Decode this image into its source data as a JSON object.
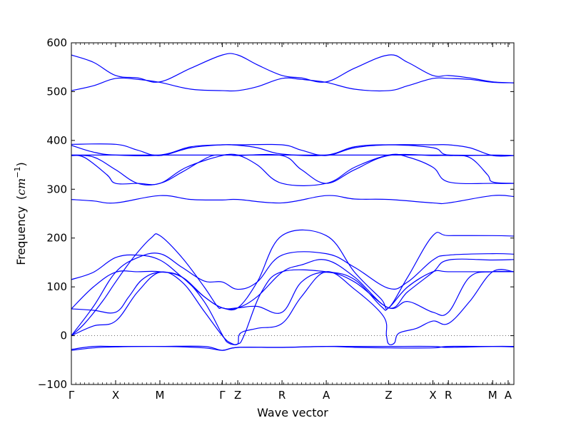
{
  "chart_data": {
    "type": "line",
    "xlabel": "Wave vector",
    "ylabel": "Frequency",
    "ylabel_unit_base": "cm",
    "ylabel_unit_exp": "−1",
    "ylim": [
      -100,
      600
    ],
    "yticks": [
      "600",
      "500",
      "400",
      "300",
      "200",
      "100",
      "0",
      "−100"
    ],
    "ytick_values": [
      600,
      500,
      400,
      300,
      200,
      100,
      0,
      -100
    ],
    "xlim": [
      0,
      10.0
    ],
    "q_points": [
      {
        "label": "Γ",
        "x": 0.0
      },
      {
        "label": "X",
        "x": 1.0
      },
      {
        "label": "M",
        "x": 2.0
      },
      {
        "label": "Γ",
        "x": 3.41
      },
      {
        "label": "Z",
        "x": 3.76
      },
      {
        "label": "R",
        "x": 4.76
      },
      {
        "label": "A",
        "x": 5.76
      },
      {
        "label": "Z",
        "x": 7.17
      },
      {
        "label": "X",
        "x": 8.17
      },
      {
        "label": "R",
        "x": 8.52
      },
      {
        "label": "M",
        "x": 9.52
      },
      {
        "label": "A",
        "x": 9.87
      }
    ],
    "zero_line": 0,
    "line_color": "#0000ff",
    "series": [
      {
        "values": [
          [
            0,
            575
          ],
          [
            0.5,
            560
          ],
          [
            1,
            533
          ],
          [
            1.5,
            528
          ],
          [
            2,
            520
          ],
          [
            2.7,
            548
          ],
          [
            3.41,
            575
          ],
          [
            3.76,
            575
          ],
          [
            4.2,
            555
          ],
          [
            4.76,
            533
          ],
          [
            5.2,
            528
          ],
          [
            5.76,
            520
          ],
          [
            6.4,
            548
          ],
          [
            7.17,
            575
          ],
          [
            7.6,
            560
          ],
          [
            8.17,
            533
          ],
          [
            8.52,
            533
          ],
          [
            9.0,
            528
          ],
          [
            9.52,
            520
          ],
          [
            10,
            518
          ]
        ]
      },
      {
        "values": [
          [
            0,
            502
          ],
          [
            0.5,
            512
          ],
          [
            1,
            527
          ],
          [
            1.5,
            525
          ],
          [
            2,
            519
          ],
          [
            2.7,
            505
          ],
          [
            3.41,
            502
          ],
          [
            3.76,
            502
          ],
          [
            4.2,
            510
          ],
          [
            4.76,
            527
          ],
          [
            5.2,
            525
          ],
          [
            5.76,
            519
          ],
          [
            6.4,
            505
          ],
          [
            7.17,
            502
          ],
          [
            7.6,
            512
          ],
          [
            8.17,
            527
          ],
          [
            8.52,
            527
          ],
          [
            9.0,
            525
          ],
          [
            9.52,
            519
          ],
          [
            10,
            518
          ]
        ]
      },
      {
        "values": [
          [
            0,
            392
          ],
          [
            1,
            392
          ],
          [
            1.5,
            380
          ],
          [
            2,
            369
          ],
          [
            2.7,
            385
          ],
          [
            3.41,
            391
          ],
          [
            3.76,
            391
          ],
          [
            4.76,
            391
          ],
          [
            5.2,
            380
          ],
          [
            5.76,
            369
          ],
          [
            6.4,
            385
          ],
          [
            7.17,
            391
          ],
          [
            8.17,
            391
          ],
          [
            8.52,
            391
          ],
          [
            9.0,
            385
          ],
          [
            9.52,
            369
          ],
          [
            10,
            369
          ]
        ]
      },
      {
        "values": [
          [
            0,
            390
          ],
          [
            0.5,
            376
          ],
          [
            1,
            370
          ],
          [
            2,
            370
          ],
          [
            2.7,
            387
          ],
          [
            3.41,
            391
          ],
          [
            3.76,
            390
          ],
          [
            4.2,
            385
          ],
          [
            4.76,
            372
          ],
          [
            5.76,
            370
          ],
          [
            6.4,
            387
          ],
          [
            7.17,
            391
          ],
          [
            8.17,
            385
          ],
          [
            8.52,
            370
          ],
          [
            9.52,
            370
          ],
          [
            10,
            369
          ]
        ]
      },
      {
        "values": [
          [
            0,
            370
          ],
          [
            0.5,
            366
          ],
          [
            1,
            340
          ],
          [
            1.5,
            312
          ],
          [
            2,
            312
          ],
          [
            2.5,
            335
          ],
          [
            3.1,
            366
          ],
          [
            3.41,
            370
          ],
          [
            3.76,
            370
          ],
          [
            4.2,
            350
          ],
          [
            4.76,
            312
          ],
          [
            5.76,
            312
          ],
          [
            6.4,
            345
          ],
          [
            7.17,
            370
          ],
          [
            7.6,
            366
          ],
          [
            8.17,
            345
          ],
          [
            8.52,
            315
          ],
          [
            9.52,
            312
          ],
          [
            10,
            312
          ]
        ]
      },
      {
        "values": [
          [
            0,
            369
          ],
          [
            0.3,
            365
          ],
          [
            0.8,
            330
          ],
          [
            1,
            312
          ],
          [
            1.5,
            312
          ],
          [
            2,
            312
          ],
          [
            2.6,
            345
          ],
          [
            3.41,
            369
          ],
          [
            3.76,
            369
          ],
          [
            4.76,
            369
          ],
          [
            5.2,
            340
          ],
          [
            5.76,
            312
          ],
          [
            6.4,
            340
          ],
          [
            7.17,
            369
          ],
          [
            8.17,
            369
          ],
          [
            8.52,
            369
          ],
          [
            9.0,
            365
          ],
          [
            9.4,
            330
          ],
          [
            9.52,
            315
          ],
          [
            10,
            312
          ]
        ]
      },
      {
        "values": [
          [
            0,
            370
          ],
          [
            3.41,
            370
          ],
          [
            3.76,
            370
          ],
          [
            7.17,
            370
          ],
          [
            8.17,
            370
          ],
          [
            8.52,
            370
          ],
          [
            10,
            369
          ]
        ]
      },
      {
        "values": [
          [
            0,
            279
          ],
          [
            0.5,
            276
          ],
          [
            1,
            272
          ],
          [
            2,
            287
          ],
          [
            2.7,
            279
          ],
          [
            3.41,
            278
          ],
          [
            3.76,
            279
          ],
          [
            4.76,
            272
          ],
          [
            5.76,
            287
          ],
          [
            6.4,
            280
          ],
          [
            7.17,
            279
          ],
          [
            8.17,
            272
          ],
          [
            8.52,
            272
          ],
          [
            9.52,
            287
          ],
          [
            10,
            285
          ]
        ]
      },
      {
        "values": [
          [
            0,
            0
          ],
          [
            0.3,
            25
          ],
          [
            0.7,
            70
          ],
          [
            1,
            110
          ],
          [
            1.4,
            160
          ],
          [
            1.8,
            200
          ],
          [
            2,
            205
          ],
          [
            2.5,
            160
          ],
          [
            3.0,
            100
          ],
          [
            3.3,
            60
          ],
          [
            3.41,
            57
          ],
          [
            3.76,
            57
          ],
          [
            4.2,
            110
          ],
          [
            4.76,
            205
          ],
          [
            5.76,
            205
          ],
          [
            6.4,
            130
          ],
          [
            7.0,
            75
          ],
          [
            7.17,
            57
          ],
          [
            7.6,
            120
          ],
          [
            8.17,
            205
          ],
          [
            8.52,
            205
          ],
          [
            9.52,
            205
          ],
          [
            10,
            204
          ]
        ]
      },
      {
        "values": [
          [
            0,
            0
          ],
          [
            0.5,
            60
          ],
          [
            1,
            130
          ],
          [
            1.5,
            160
          ],
          [
            2,
            168
          ],
          [
            2.5,
            140
          ],
          [
            3.0,
            112
          ],
          [
            3.41,
            110
          ],
          [
            3.76,
            95
          ],
          [
            4.2,
            110
          ],
          [
            4.76,
            165
          ],
          [
            5.76,
            168
          ],
          [
            6.4,
            140
          ],
          [
            7.17,
            97
          ],
          [
            7.6,
            110
          ],
          [
            8.17,
            155
          ],
          [
            8.52,
            165
          ],
          [
            9.52,
            168
          ],
          [
            10,
            167
          ]
        ]
      },
      {
        "values": [
          [
            0,
            115
          ],
          [
            0.5,
            130
          ],
          [
            1,
            160
          ],
          [
            1.5,
            165
          ],
          [
            2,
            155
          ],
          [
            2.5,
            120
          ],
          [
            3.0,
            80
          ],
          [
            3.41,
            57
          ],
          [
            3.76,
            57
          ],
          [
            4.2,
            80
          ],
          [
            4.76,
            130
          ],
          [
            5.2,
            145
          ],
          [
            5.76,
            155
          ],
          [
            6.4,
            120
          ],
          [
            7.17,
            57
          ],
          [
            7.6,
            90
          ],
          [
            8.17,
            130
          ],
          [
            8.52,
            155
          ],
          [
            9.52,
            155
          ],
          [
            10,
            156
          ]
        ]
      },
      {
        "values": [
          [
            0,
            55
          ],
          [
            0.5,
            52
          ],
          [
            1,
            48
          ],
          [
            1.3,
            80
          ],
          [
            1.6,
            115
          ],
          [
            2,
            130
          ],
          [
            2.5,
            120
          ],
          [
            3.0,
            80
          ],
          [
            3.41,
            57
          ],
          [
            3.76,
            57
          ],
          [
            4.2,
            60
          ],
          [
            4.76,
            48
          ],
          [
            5.2,
            110
          ],
          [
            5.76,
            130
          ],
          [
            6.4,
            110
          ],
          [
            7.17,
            57
          ],
          [
            7.6,
            70
          ],
          [
            8.17,
            48
          ],
          [
            8.52,
            48
          ],
          [
            9.0,
            120
          ],
          [
            9.52,
            131
          ],
          [
            10,
            131
          ]
        ]
      },
      {
        "values": [
          [
            0,
            55
          ],
          [
            0.5,
            100
          ],
          [
            1,
            130
          ],
          [
            1.5,
            131
          ],
          [
            2,
            131
          ],
          [
            2.5,
            120
          ],
          [
            3.0,
            70
          ],
          [
            3.41,
            2
          ],
          [
            3.55,
            -15
          ],
          [
            3.76,
            -17
          ],
          [
            3.9,
            0
          ],
          [
            4.3,
            90
          ],
          [
            4.76,
            131
          ],
          [
            5.76,
            131
          ],
          [
            6.4,
            115
          ],
          [
            7.0,
            60
          ],
          [
            7.17,
            57
          ],
          [
            7.6,
            100
          ],
          [
            8.17,
            131
          ],
          [
            8.52,
            131
          ],
          [
            9.52,
            131
          ],
          [
            10,
            131
          ]
        ]
      },
      {
        "values": [
          [
            0,
            0
          ],
          [
            0.5,
            20
          ],
          [
            1,
            30
          ],
          [
            1.5,
            90
          ],
          [
            2,
            130
          ],
          [
            2.5,
            110
          ],
          [
            3.0,
            50
          ],
          [
            3.41,
            0
          ],
          [
            3.6,
            -15
          ],
          [
            3.76,
            -17
          ],
          [
            3.82,
            5
          ],
          [
            4.2,
            15
          ],
          [
            4.76,
            25
          ],
          [
            5.2,
            80
          ],
          [
            5.76,
            131
          ],
          [
            6.4,
            95
          ],
          [
            7.05,
            40
          ],
          [
            7.12,
            0
          ],
          [
            7.17,
            -17
          ],
          [
            7.3,
            -15
          ],
          [
            7.4,
            5
          ],
          [
            7.8,
            15
          ],
          [
            8.17,
            30
          ],
          [
            8.52,
            25
          ],
          [
            9.0,
            70
          ],
          [
            9.52,
            131
          ],
          [
            10,
            131
          ]
        ]
      },
      {
        "values": [
          [
            0,
            -30
          ],
          [
            0.5,
            -25
          ],
          [
            1,
            -23
          ],
          [
            2,
            -22
          ],
          [
            3.0,
            -25
          ],
          [
            3.41,
            -30
          ],
          [
            3.76,
            -24
          ],
          [
            4.76,
            -24
          ],
          [
            5.76,
            -22
          ],
          [
            6.4,
            -24
          ],
          [
            7.17,
            -25
          ],
          [
            8.17,
            -25
          ],
          [
            8.52,
            -22
          ],
          [
            9.52,
            -22
          ],
          [
            10,
            -23
          ]
        ]
      },
      {
        "values": [
          [
            0,
            -28
          ],
          [
            0.5,
            -22
          ],
          [
            1,
            -22
          ],
          [
            2,
            -22
          ],
          [
            3.0,
            -22
          ],
          [
            3.41,
            -30
          ],
          [
            3.76,
            -24
          ],
          [
            4.76,
            -24
          ],
          [
            5.76,
            -22
          ],
          [
            6.4,
            -22
          ],
          [
            7.17,
            -22
          ],
          [
            8.17,
            -22
          ],
          [
            8.52,
            -24
          ],
          [
            9.52,
            -22
          ],
          [
            10,
            -22
          ]
        ]
      }
    ]
  }
}
